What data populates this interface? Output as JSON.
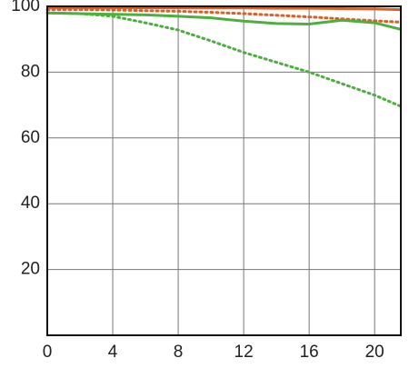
{
  "chart_data": {
    "type": "line",
    "x": [
      0,
      2,
      4,
      6,
      8,
      10,
      12,
      14,
      16,
      18,
      20,
      21.6
    ],
    "series": [
      {
        "color": "#d4622a",
        "dashed": false,
        "values": [
          99.6,
          99.6,
          99.6,
          99.6,
          99.5,
          99.5,
          99.5,
          99.4,
          99.4,
          99.3,
          99.2,
          99
        ]
      },
      {
        "color": "#d4622a",
        "dashed": true,
        "values": [
          99,
          99,
          98.9,
          98.7,
          98.5,
          98.2,
          97.8,
          97.3,
          96.8,
          96.2,
          95.6,
          95.2
        ]
      },
      {
        "color": "#4caf3e",
        "dashed": false,
        "values": [
          98,
          97.8,
          97.6,
          97.4,
          97,
          96.5,
          95.5,
          94.8,
          94.6,
          95.8,
          95,
          93
        ]
      },
      {
        "color": "#4caf3e",
        "dashed": true,
        "values": [
          98,
          97.8,
          97,
          95,
          92.8,
          89.5,
          86,
          83,
          80,
          76.5,
          73,
          69.6
        ]
      }
    ],
    "xlim": [
      0,
      21.6
    ],
    "ylim": [
      0,
      100
    ],
    "xticks": [
      0,
      4,
      8,
      12,
      16,
      20
    ],
    "yticks": [
      20,
      40,
      60,
      80,
      100
    ],
    "grid": true
  }
}
